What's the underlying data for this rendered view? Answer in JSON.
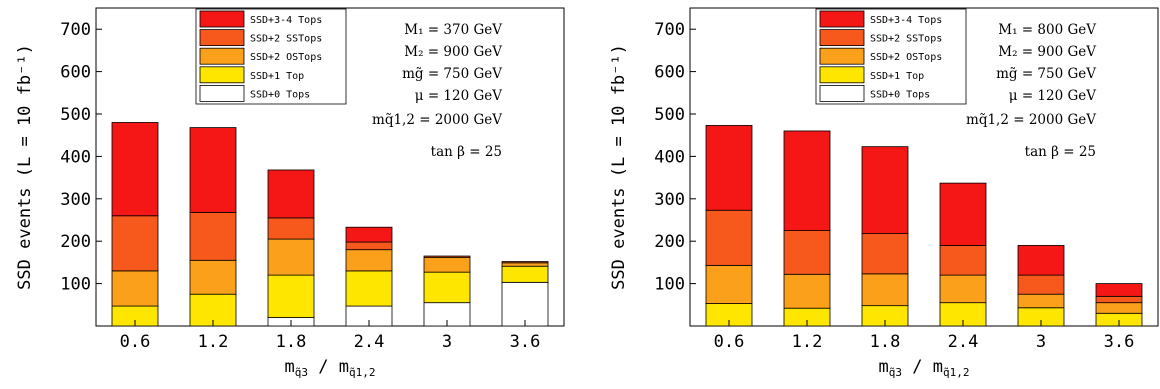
{
  "colors": {
    "SSD+3-4 Tops": "#f51616",
    "SSD+2 SSTops": "#f7581c",
    "SSD+2 OSTops": "#fba01a",
    "SSD+1 Top": "#fee600",
    "SSD+0 Tops": "#ffffff"
  },
  "chart_data": [
    {
      "type": "bar",
      "stacked": true,
      "ylabel": "SSD events (L = 10 fb⁻¹)",
      "xlabel": "m_{q̃3} / m_{q̃1,2}",
      "ylim": [
        0,
        750
      ],
      "yticks": [
        100,
        200,
        300,
        400,
        500,
        600,
        700
      ],
      "categories": [
        "0.6",
        "1.2",
        "1.8",
        "2.4",
        "3",
        "3.6"
      ],
      "legend": [
        "SSD+3-4 Tops",
        "SSD+2 SSTops",
        "SSD+2 OSTops",
        "SSD+1 Top",
        "SSD+0 Tops"
      ],
      "legend_position": "top-center",
      "series": [
        {
          "name": "SSD+0 Tops",
          "values": [
            0,
            0,
            20,
            47,
            55,
            103
          ]
        },
        {
          "name": "SSD+1 Top",
          "values": [
            47,
            75,
            100,
            83,
            72,
            38
          ]
        },
        {
          "name": "SSD+2 OSTops",
          "values": [
            83,
            80,
            85,
            50,
            35,
            8
          ]
        },
        {
          "name": "SSD+2 SSTops",
          "values": [
            130,
            113,
            50,
            18,
            3,
            3
          ]
        },
        {
          "name": "SSD+3-4 Tops",
          "values": [
            220,
            200,
            113,
            35,
            0,
            0
          ]
        }
      ],
      "annotations": {
        "lines": [
          "M₁ = 370 GeV",
          "M₂ = 900 GeV",
          "mg̃ = 750 GeV",
          "μ = 120 GeV",
          "mq̃1,2 = 2000 GeV",
          "tan β = 25"
        ]
      }
    },
    {
      "type": "bar",
      "stacked": true,
      "ylabel": "SSD events (L = 10 fb⁻¹)",
      "xlabel": "m_{q̃3} / m_{q̃1,2}",
      "ylim": [
        0,
        750
      ],
      "yticks": [
        100,
        200,
        300,
        400,
        500,
        600,
        700
      ],
      "categories": [
        "0.6",
        "1.2",
        "1.8",
        "2.4",
        "3",
        "3.6"
      ],
      "legend": [
        "SSD+3-4 Tops",
        "SSD+2 SSTops",
        "SSD+2 OSTops",
        "SSD+1 Top",
        "SSD+0 Tops"
      ],
      "legend_position": "top-center",
      "series": [
        {
          "name": "SSD+0 Tops",
          "values": [
            0,
            0,
            0,
            0,
            0,
            0
          ]
        },
        {
          "name": "SSD+1 Top",
          "values": [
            53,
            42,
            48,
            55,
            43,
            30
          ]
        },
        {
          "name": "SSD+2 OSTops",
          "values": [
            90,
            80,
            75,
            65,
            32,
            25
          ]
        },
        {
          "name": "SSD+2 SSTops",
          "values": [
            130,
            103,
            95,
            70,
            45,
            15
          ]
        },
        {
          "name": "SSD+3-4 Tops",
          "values": [
            200,
            235,
            205,
            147,
            70,
            30
          ]
        }
      ],
      "annotations": {
        "lines": [
          "M₁ = 800 GeV",
          "M₂ = 900 GeV",
          "mg̃ = 750 GeV",
          "μ = 120 GeV",
          "mq̃1,2 = 2000 GeV",
          "tan β = 25"
        ]
      }
    }
  ]
}
